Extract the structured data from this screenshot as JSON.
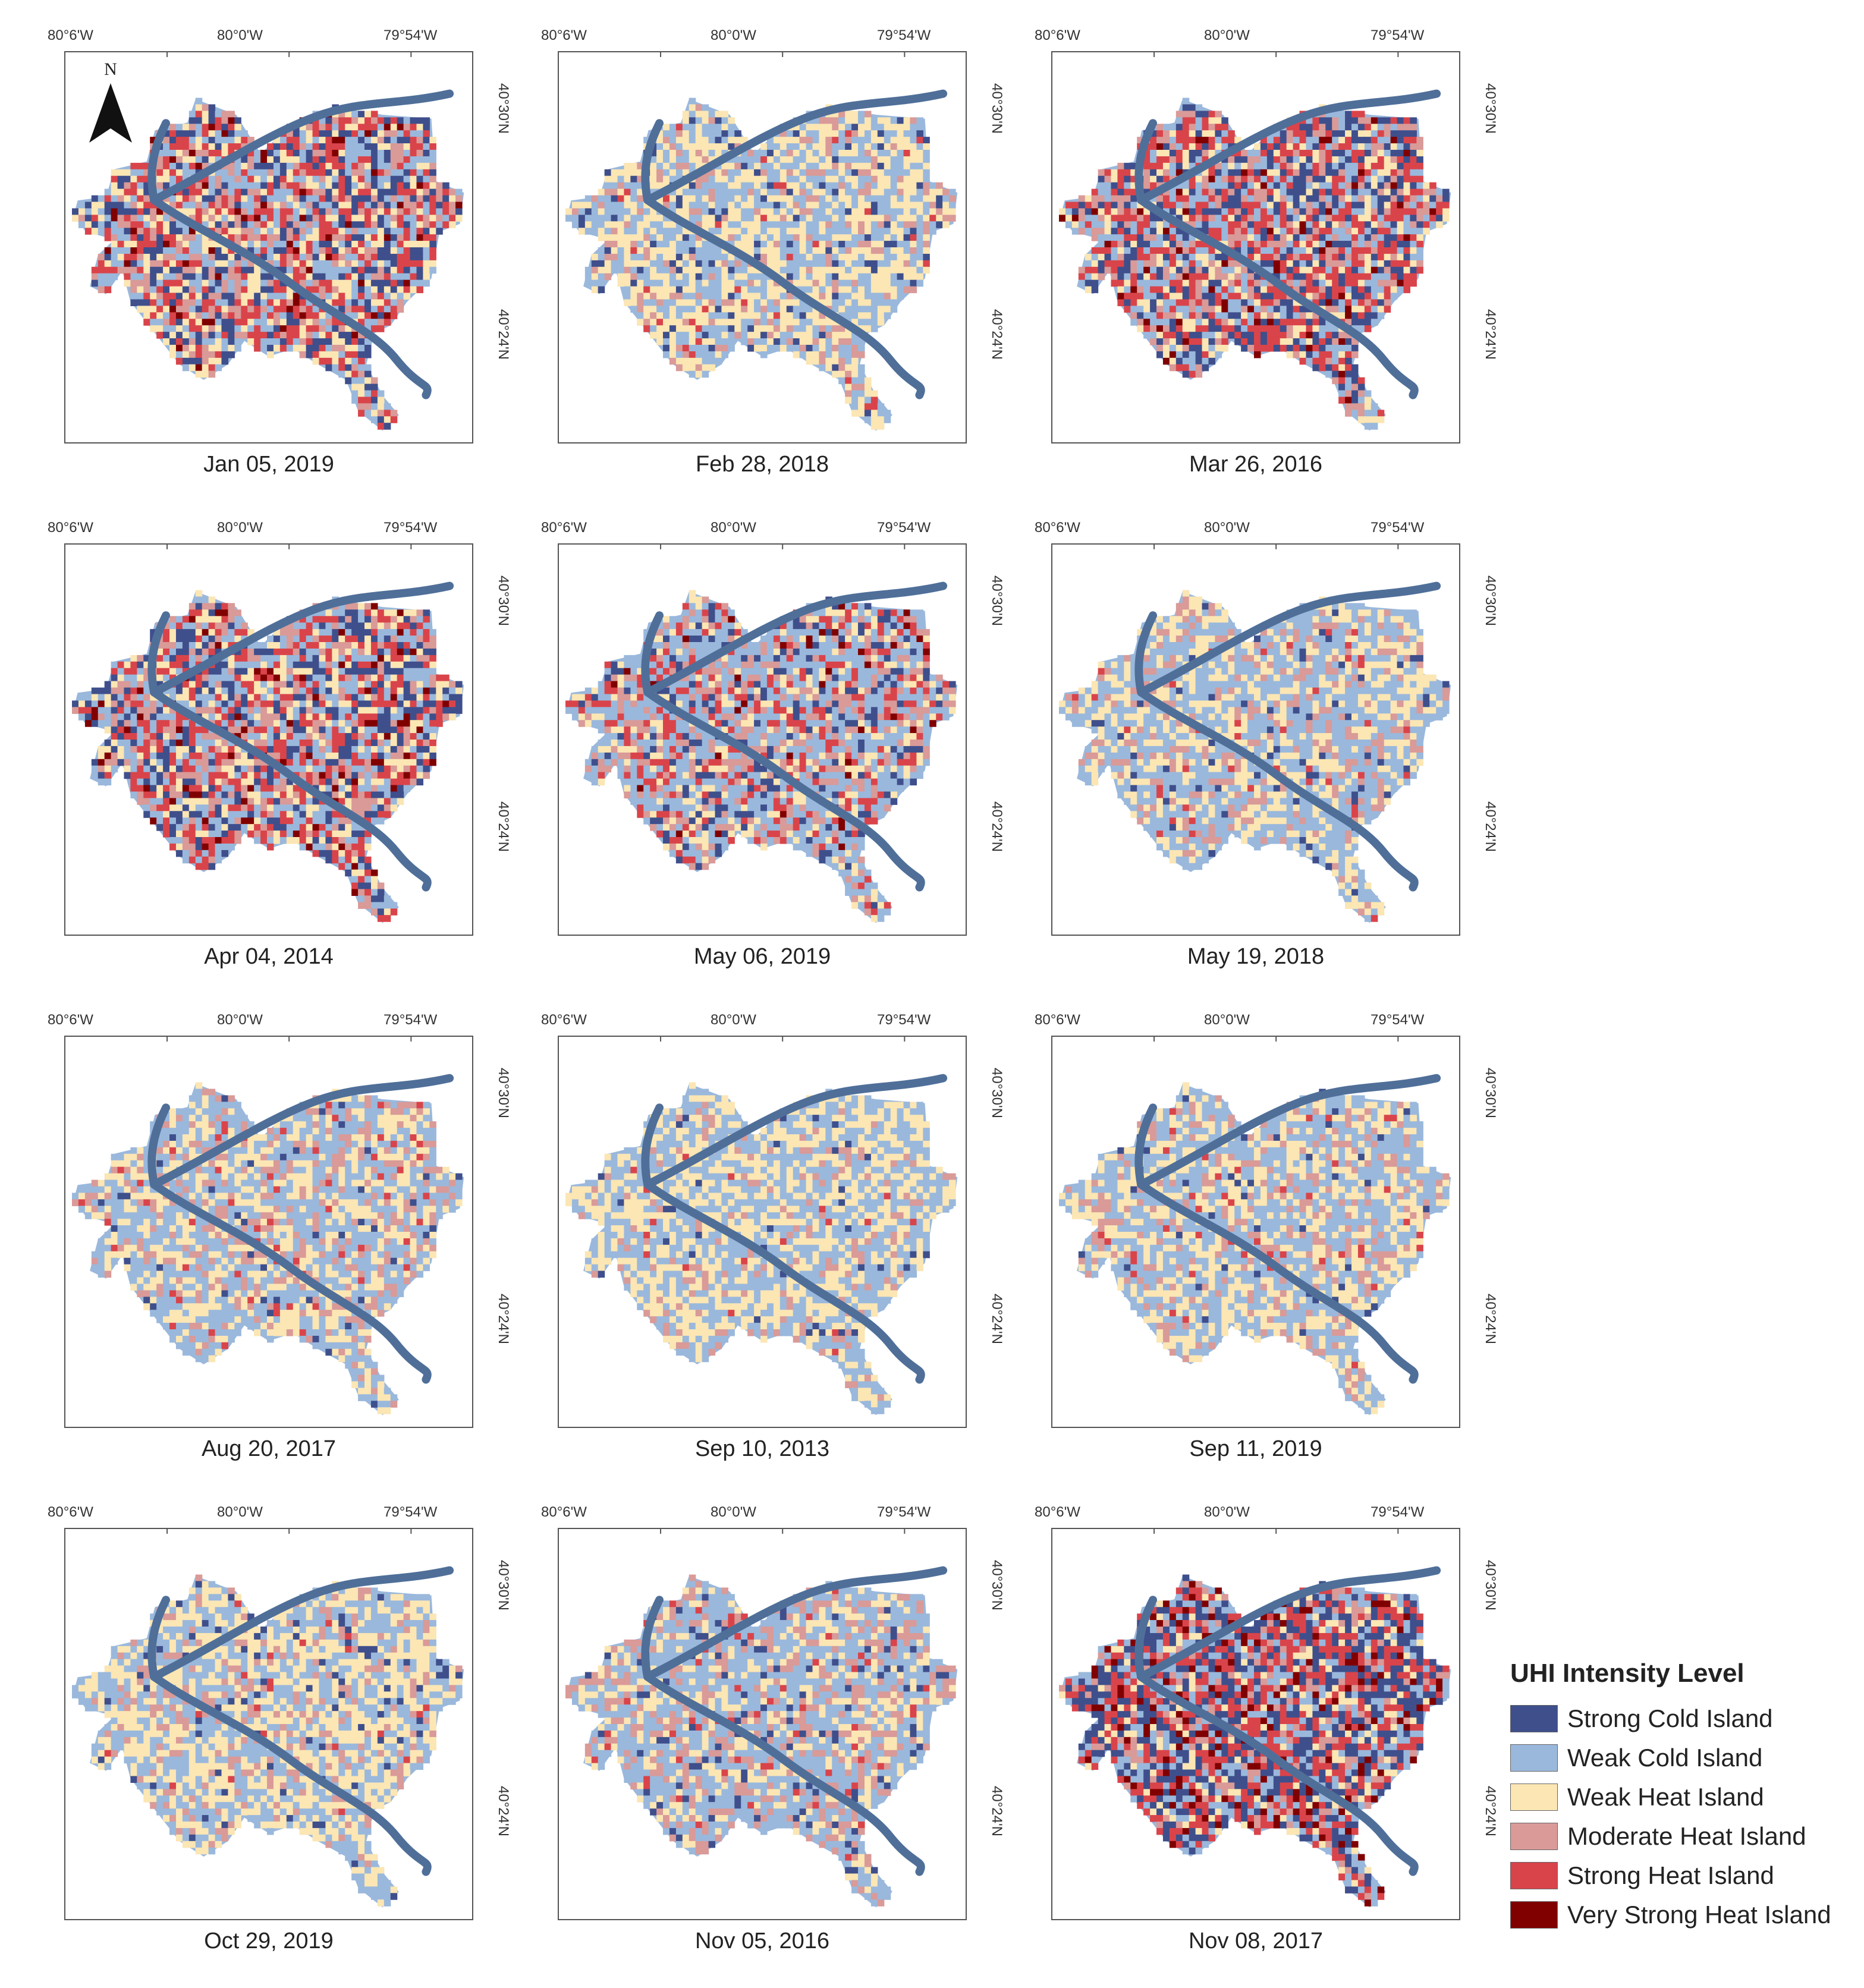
{
  "axis_labels": {
    "lon": [
      "80°6'W",
      "80°0'W",
      "79°54'W"
    ],
    "lat": [
      "40°30'N",
      "40°24'N"
    ]
  },
  "north_arrow": {
    "letter": "N",
    "icon": "north-arrow-icon"
  },
  "panels": [
    {
      "date": "Jan 05, 2019",
      "mix": [
        0.18,
        0.22,
        0.18,
        0.16,
        0.22,
        0.04
      ]
    },
    {
      "date": "Feb 28, 2018",
      "mix": [
        0.06,
        0.38,
        0.4,
        0.14,
        0.02,
        0.0
      ]
    },
    {
      "date": "Mar 26, 2016",
      "mix": [
        0.2,
        0.22,
        0.14,
        0.16,
        0.24,
        0.04
      ]
    },
    {
      "date": "Apr 04, 2014",
      "mix": [
        0.18,
        0.24,
        0.16,
        0.16,
        0.22,
        0.04
      ]
    },
    {
      "date": "May 06, 2019",
      "mix": [
        0.1,
        0.38,
        0.14,
        0.18,
        0.18,
        0.02
      ]
    },
    {
      "date": "May 19, 2018",
      "mix": [
        0.04,
        0.44,
        0.36,
        0.14,
        0.02,
        0.0
      ]
    },
    {
      "date": "Aug 20, 2017",
      "mix": [
        0.02,
        0.46,
        0.3,
        0.18,
        0.04,
        0.0
      ]
    },
    {
      "date": "Sep 10, 2013",
      "mix": [
        0.02,
        0.46,
        0.42,
        0.09,
        0.01,
        0.0
      ]
    },
    {
      "date": "Sep 11, 2019",
      "mix": [
        0.02,
        0.46,
        0.34,
        0.15,
        0.03,
        0.0
      ]
    },
    {
      "date": "Oct 29, 2019",
      "mix": [
        0.04,
        0.4,
        0.42,
        0.13,
        0.01,
        0.0
      ]
    },
    {
      "date": "Nov 05, 2016",
      "mix": [
        0.06,
        0.48,
        0.22,
        0.2,
        0.04,
        0.0
      ]
    },
    {
      "date": "Nov 08, 2017",
      "mix": [
        0.28,
        0.18,
        0.1,
        0.1,
        0.26,
        0.08
      ]
    }
  ],
  "legend": {
    "title": "UHI Intensity Level",
    "items": [
      {
        "label": "Strong Cold Island",
        "color": "#3f4f8c"
      },
      {
        "label": "Weak Cold Island",
        "color": "#9ab8dc"
      },
      {
        "label": "Weak Heat Island",
        "color": "#fbe6b4"
      },
      {
        "label": "Moderate Heat Island",
        "color": "#d99a98"
      },
      {
        "label": "Strong Heat Island",
        "color": "#d9444a"
      },
      {
        "label": "Very Strong Heat Island",
        "color": "#800000"
      }
    ]
  },
  "river_color": "#4f6f99"
}
